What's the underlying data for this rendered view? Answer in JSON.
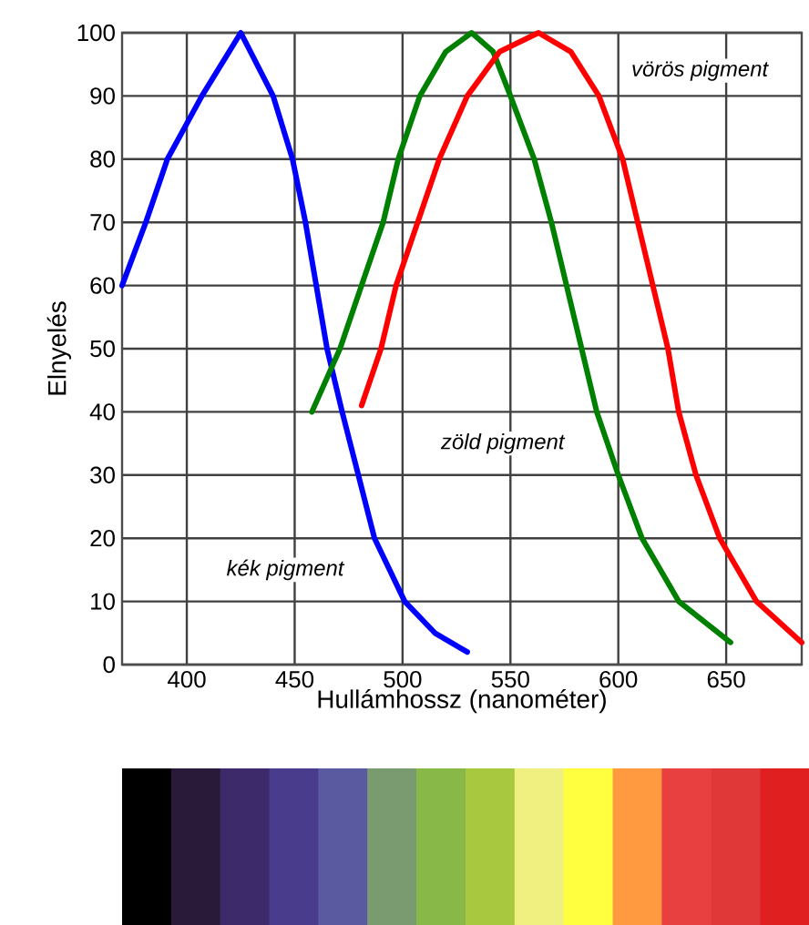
{
  "chart_data": {
    "type": "line",
    "xlabel": "Hullámhossz (nanométer)",
    "ylabel": "Elnyelés",
    "xlim": [
      370,
      685
    ],
    "ylim": [
      0,
      100
    ],
    "xticks": [
      400,
      450,
      500,
      550,
      600,
      650
    ],
    "yticks": [
      0,
      10,
      20,
      30,
      40,
      50,
      60,
      70,
      80,
      90,
      100
    ],
    "grid": true,
    "series": [
      {
        "color": "#0000ff",
        "x": [
          370,
          381,
          391,
          407,
          425,
          440,
          449,
          455,
          460,
          465,
          472,
          487,
          501,
          515,
          530
        ],
        "values": [
          60,
          70,
          80,
          90,
          100,
          90,
          80,
          70,
          60,
          50,
          40,
          20,
          10,
          5,
          2
        ]
      },
      {
        "color": "#008000",
        "x": [
          458,
          471,
          481,
          491,
          498,
          508,
          520,
          532,
          542,
          550,
          561,
          569,
          576,
          583,
          590,
          600,
          611,
          628,
          652
        ],
        "values": [
          40,
          50,
          60,
          70,
          80,
          90,
          97,
          100,
          97,
          90,
          80,
          70,
          60,
          50,
          40,
          30,
          20,
          10,
          3.5
        ]
      },
      {
        "color": "#ff0000",
        "x": [
          481,
          490,
          497,
          507,
          517,
          530,
          545,
          563,
          578,
          591,
          602,
          609,
          616,
          623,
          628,
          636,
          647,
          664,
          685
        ],
        "values": [
          41,
          50,
          60,
          70,
          80,
          90,
          97,
          100,
          97,
          90,
          80,
          70,
          60,
          50,
          40,
          30,
          20,
          10,
          3.5
        ]
      }
    ],
    "annotations": [
      "vörös pigment",
      "zöld pigment",
      "kék pigment"
    ]
  }
}
